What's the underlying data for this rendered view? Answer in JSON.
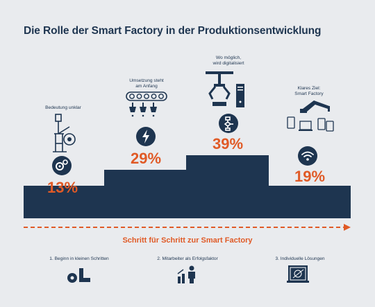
{
  "title": "Die Rolle der Smart Factory in der Produktionsentwicklung",
  "colors": {
    "navy": "#1e3550",
    "orange": "#e05a26",
    "background": "#e9ebee"
  },
  "steps": [
    {
      "label": "Bedeutung unklar",
      "percent": "13%",
      "icon": "gears-icon",
      "illustration": "robot-arm-icon"
    },
    {
      "label_line1": "Umsetzung steht",
      "label_line2": "am Anfang",
      "percent": "29%",
      "icon": "lightning-icon",
      "illustration": "conveyor-belt-icon"
    },
    {
      "label_line1": "Wo möglich,",
      "label_line2": "wird digitalisiert",
      "percent": "39%",
      "icon": "flowchart-icon",
      "illustration": "gripper-computer-icon"
    },
    {
      "label_line1": "Klares Ziel:",
      "label_line2": "Smart Factory",
      "percent": "19%",
      "icon": "wifi-icon",
      "illustration": "connected-devices-icon"
    }
  ],
  "arrow_text": "Schritt für Schritt zur Smart Factory",
  "footer": [
    {
      "label": "1. Beginn in kleinen Schritten",
      "icon": "gear-boot-icon"
    },
    {
      "label": "2. Mitarbeiter als Erfolgsfaktor",
      "icon": "people-growth-icon"
    },
    {
      "label": "3. Individuelle Lösungen",
      "icon": "blueprint-icon"
    }
  ]
}
